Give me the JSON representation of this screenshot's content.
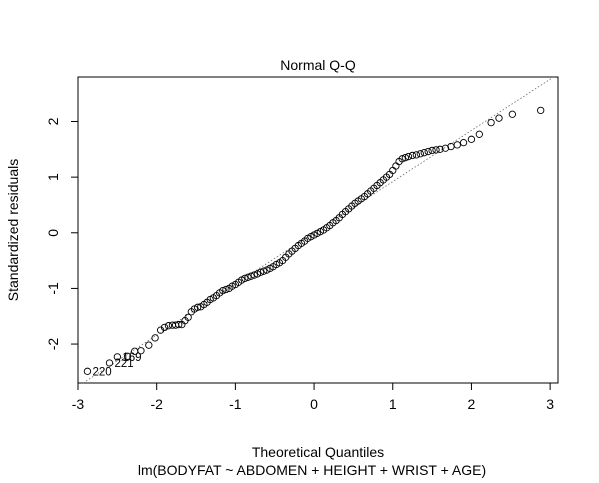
{
  "chart_data": {
    "type": "scatter",
    "title": "Normal Q-Q",
    "xlabel": "Theoretical Quantiles",
    "ylabel": "Standardized residuals",
    "subtitle": "lm(BODYFAT ~ ABDOMEN + HEIGHT + WRIST + AGE)",
    "xlim": [
      -3.0,
      3.1
    ],
    "ylim": [
      -2.7,
      2.8
    ],
    "x_ticks": [
      -3,
      -2,
      -1,
      0,
      1,
      2,
      3
    ],
    "y_ticks": [
      -2,
      -1,
      0,
      1,
      2
    ],
    "grid": false,
    "reference_line": {
      "slope": 0.92,
      "intercept": 0.0,
      "style": "dotted"
    },
    "labeled_points": [
      {
        "label": "220",
        "x": -2.88,
        "y": -2.49
      },
      {
        "label": "221",
        "x": -2.6,
        "y": -2.34
      },
      {
        "label": "169",
        "x": -2.5,
        "y": -2.23
      }
    ],
    "series": [
      {
        "points": [
          [
            -2.88,
            -2.49
          ],
          [
            -2.6,
            -2.34
          ],
          [
            -2.5,
            -2.23
          ],
          [
            -2.37,
            -2.22
          ],
          [
            -2.28,
            -2.13
          ],
          [
            -2.2,
            -2.12
          ],
          [
            -2.1,
            -2.02
          ],
          [
            -2.02,
            -1.89
          ],
          [
            -1.95,
            -1.75
          ],
          [
            -1.9,
            -1.7
          ],
          [
            -1.85,
            -1.67
          ],
          [
            -1.8,
            -1.66
          ],
          [
            -1.76,
            -1.66
          ],
          [
            -1.72,
            -1.65
          ],
          [
            -1.68,
            -1.65
          ],
          [
            -1.64,
            -1.58
          ],
          [
            -1.6,
            -1.52
          ],
          [
            -1.56,
            -1.42
          ],
          [
            -1.52,
            -1.37
          ],
          [
            -1.48,
            -1.34
          ],
          [
            -1.44,
            -1.33
          ],
          [
            -1.4,
            -1.29
          ],
          [
            -1.36,
            -1.25
          ],
          [
            -1.32,
            -1.2
          ],
          [
            -1.28,
            -1.17
          ],
          [
            -1.24,
            -1.13
          ],
          [
            -1.2,
            -1.08
          ],
          [
            -1.16,
            -1.04
          ],
          [
            -1.12,
            -1.02
          ],
          [
            -1.08,
            -1.0
          ],
          [
            -1.04,
            -0.96
          ],
          [
            -1.0,
            -0.93
          ],
          [
            -0.96,
            -0.89
          ],
          [
            -0.92,
            -0.85
          ],
          [
            -0.88,
            -0.82
          ],
          [
            -0.84,
            -0.8
          ],
          [
            -0.8,
            -0.78
          ],
          [
            -0.76,
            -0.76
          ],
          [
            -0.72,
            -0.74
          ],
          [
            -0.68,
            -0.71
          ],
          [
            -0.64,
            -0.69
          ],
          [
            -0.6,
            -0.67
          ],
          [
            -0.56,
            -0.64
          ],
          [
            -0.52,
            -0.61
          ],
          [
            -0.48,
            -0.57
          ],
          [
            -0.44,
            -0.54
          ],
          [
            -0.4,
            -0.5
          ],
          [
            -0.36,
            -0.44
          ],
          [
            -0.32,
            -0.38
          ],
          [
            -0.28,
            -0.33
          ],
          [
            -0.24,
            -0.28
          ],
          [
            -0.2,
            -0.23
          ],
          [
            -0.16,
            -0.19
          ],
          [
            -0.12,
            -0.15
          ],
          [
            -0.08,
            -0.1
          ],
          [
            -0.04,
            -0.07
          ],
          [
            0.0,
            -0.04
          ],
          [
            0.04,
            -0.01
          ],
          [
            0.08,
            0.02
          ],
          [
            0.12,
            0.05
          ],
          [
            0.16,
            0.09
          ],
          [
            0.2,
            0.13
          ],
          [
            0.24,
            0.18
          ],
          [
            0.28,
            0.22
          ],
          [
            0.32,
            0.27
          ],
          [
            0.36,
            0.33
          ],
          [
            0.4,
            0.38
          ],
          [
            0.44,
            0.43
          ],
          [
            0.48,
            0.48
          ],
          [
            0.52,
            0.53
          ],
          [
            0.56,
            0.57
          ],
          [
            0.6,
            0.61
          ],
          [
            0.64,
            0.65
          ],
          [
            0.68,
            0.7
          ],
          [
            0.72,
            0.75
          ],
          [
            0.76,
            0.8
          ],
          [
            0.8,
            0.85
          ],
          [
            0.84,
            0.9
          ],
          [
            0.88,
            0.95
          ],
          [
            0.92,
            1.0
          ],
          [
            0.96,
            1.05
          ],
          [
            1.0,
            1.12
          ],
          [
            1.04,
            1.2
          ],
          [
            1.08,
            1.28
          ],
          [
            1.12,
            1.33
          ],
          [
            1.16,
            1.35
          ],
          [
            1.2,
            1.37
          ],
          [
            1.25,
            1.39
          ],
          [
            1.3,
            1.4
          ],
          [
            1.35,
            1.42
          ],
          [
            1.4,
            1.44
          ],
          [
            1.45,
            1.46
          ],
          [
            1.5,
            1.48
          ],
          [
            1.55,
            1.49
          ],
          [
            1.6,
            1.5
          ],
          [
            1.67,
            1.52
          ],
          [
            1.74,
            1.55
          ],
          [
            1.82,
            1.58
          ],
          [
            1.9,
            1.62
          ],
          [
            2.0,
            1.68
          ],
          [
            2.1,
            1.77
          ],
          [
            2.25,
            1.98
          ],
          [
            2.35,
            2.06
          ],
          [
            2.52,
            2.13
          ],
          [
            2.88,
            2.2
          ]
        ]
      }
    ]
  }
}
